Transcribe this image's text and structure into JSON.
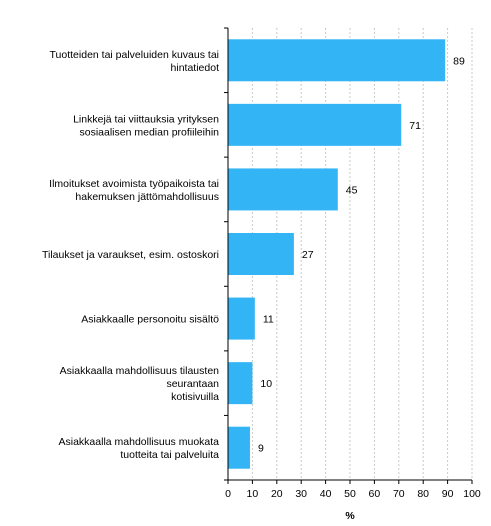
{
  "chart_data": {
    "type": "bar",
    "orientation": "horizontal",
    "categories": [
      "Tuotteiden tai palveluiden kuvaus tai\nhintatiedot",
      "Linkkejä tai viittauksia yrityksen\nsosiaalisen median profiileihin",
      "Ilmoitukset avoimista työpaikoista tai\nhakemuksen jättömahdollisuus",
      "Tilaukset ja varaukset, esim. ostoskori",
      "Asiakkaalle personoitu sisältö",
      "Asiakkaalla mahdollisuus tilausten\nseurantaan\nkotisivuilla",
      "Asiakkaalla mahdollisuus muokata\ntuotteita tai palveluita"
    ],
    "values": [
      89,
      71,
      45,
      27,
      11,
      10,
      9
    ],
    "data_labels": [
      "89",
      "71",
      "45",
      "27",
      "11",
      "10",
      "9"
    ],
    "title": "",
    "xlabel": "%",
    "ylabel": "",
    "xlim": [
      0,
      100
    ],
    "xticks": [
      0,
      10,
      20,
      30,
      40,
      50,
      60,
      70,
      80,
      90,
      100
    ],
    "xtick_labels": [
      "0",
      "10",
      "20",
      "30",
      "40",
      "50",
      "60",
      "70",
      "80",
      "90",
      "100"
    ],
    "grid": "vertical dashed",
    "legend": "none",
    "colors": {
      "bar": "#33b5f5",
      "grid": "#c8c8c8",
      "axis": "#000000"
    }
  }
}
